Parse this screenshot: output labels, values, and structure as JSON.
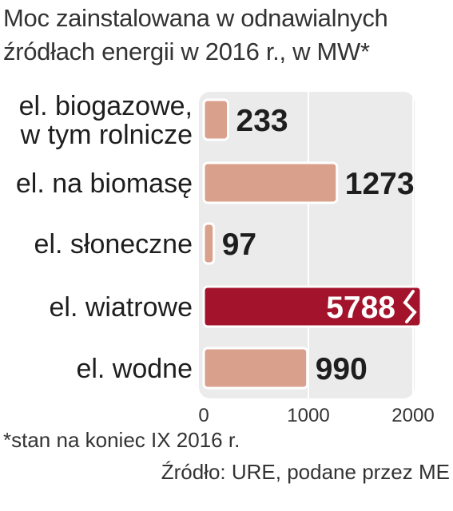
{
  "title_lines": [
    "Moc zainstalowana w odnawialnych",
    "źródłach energii w 2016 r., w MW*"
  ],
  "footnote": "*stan na koniec IX 2016 r.",
  "source": "Źródło: URE, podane przez ME",
  "colors": {
    "bar": "#d9a08c",
    "bar_highlight": "#a3142c",
    "panel": "#ebebeb",
    "text": "#1e1e1e"
  },
  "chart_data": {
    "type": "bar",
    "orientation": "horizontal",
    "categories": [
      [
        "el. biogazowe,",
        "w tym rolnicze"
      ],
      [
        "el. na biomasę"
      ],
      [
        "el. słoneczne"
      ],
      [
        "el. wiatrowe"
      ],
      [
        "el. wodne"
      ]
    ],
    "values": [
      233,
      1273,
      97,
      5788,
      990
    ],
    "value_labels": [
      "233",
      "1273",
      "97",
      "5788",
      "990"
    ],
    "highlight_index": 3,
    "axis_break_index": 3,
    "xlim": [
      0,
      2600
    ],
    "xticks": [
      0,
      1000,
      2000
    ],
    "xtick_labels": [
      "0",
      "1000",
      "2000"
    ],
    "grid": true
  }
}
